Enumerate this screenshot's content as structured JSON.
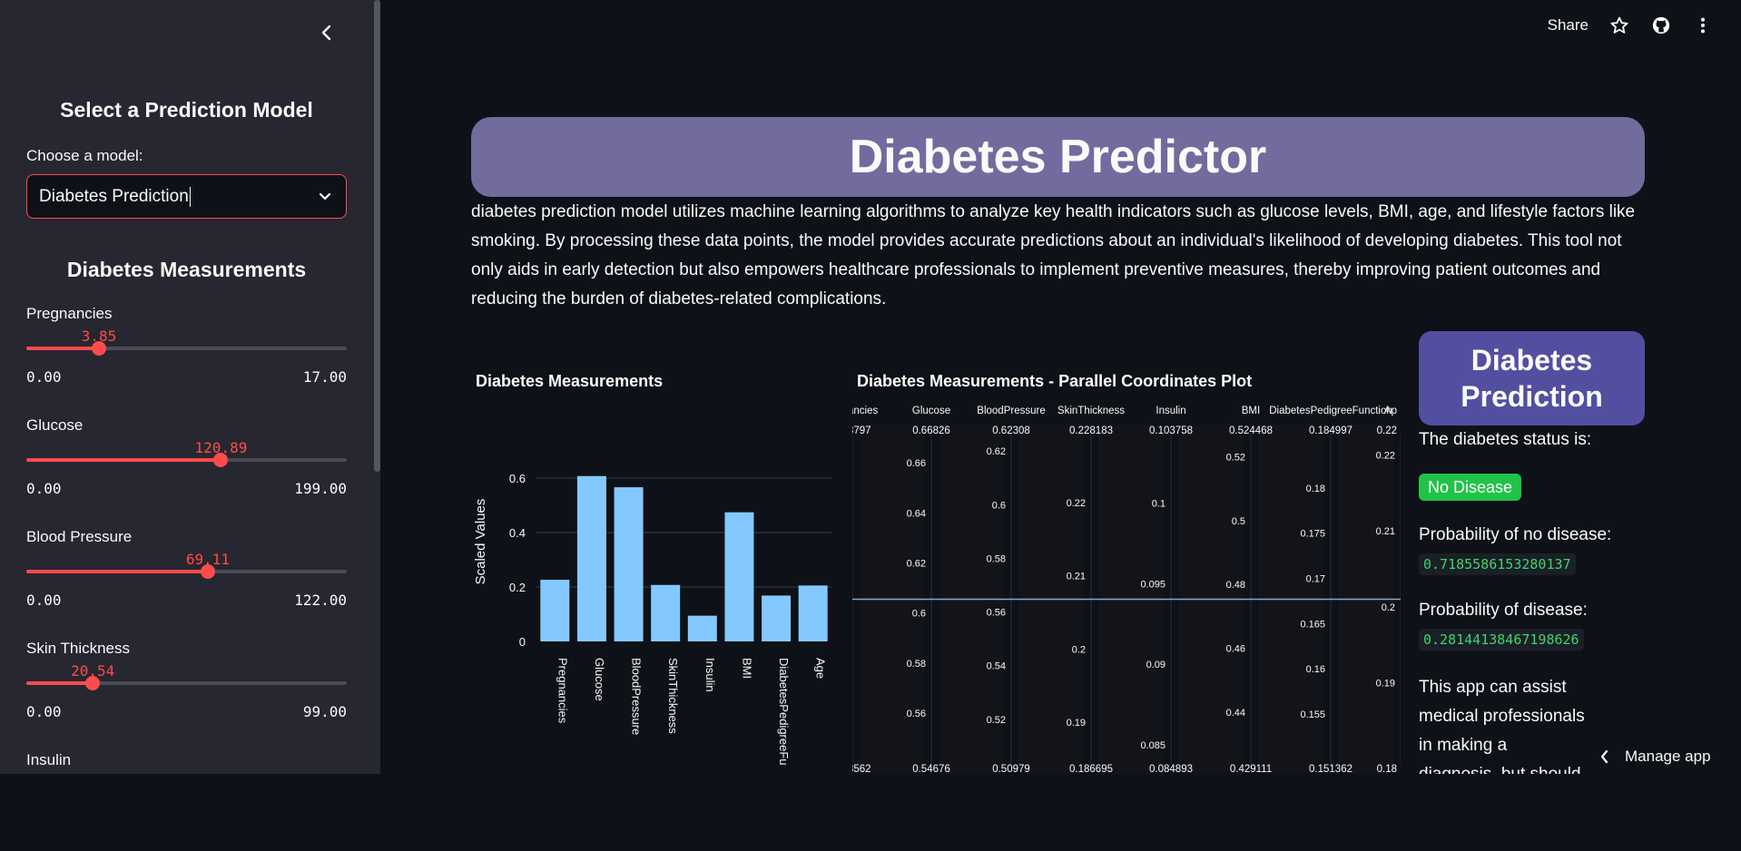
{
  "sidebar": {
    "model_title": "Select a Prediction Model",
    "choose_label": "Choose a model:",
    "selected_model": "Diabetes Prediction",
    "measurements_title": "Diabetes Measurements",
    "sliders": [
      {
        "label": "Pregnancies",
        "value": "3.85",
        "min": "0.00",
        "max": "17.00",
        "fraction": 0.2265
      },
      {
        "label": "Glucose",
        "value": "120.89",
        "min": "0.00",
        "max": "199.00",
        "fraction": 0.6075
      },
      {
        "label": "Blood Pressure",
        "value": "69.11",
        "min": "0.00",
        "max": "122.00",
        "fraction": 0.5665
      },
      {
        "label": "Skin Thickness",
        "value": "20.54",
        "min": "0.00",
        "max": "99.00",
        "fraction": 0.2075
      },
      {
        "label": "Insulin"
      }
    ]
  },
  "topbar": {
    "share": "Share",
    "icons": [
      "star-icon",
      "github-icon",
      "more-vertical-icon"
    ]
  },
  "main": {
    "title": "Diabetes Predictor",
    "description": "diabetes prediction model utilizes machine learning algorithms to analyze key health indicators such as glucose levels, BMI, age, and lifestyle factors like smoking. By processing these data points, the model provides accurate predictions about an individual's likelihood of developing diabetes. This tool not only aids in early detection but also empowers healthcare professionals to implement preventive measures, thereby improving patient outcomes and reducing the burden of diabetes-related complications.",
    "bar_chart_title": "Diabetes Measurements",
    "pc_chart_title": "Diabetes Measurements - Parallel Coordinates Plot"
  },
  "prediction": {
    "card_title_line1": "Diabetes",
    "card_title_line2": "Prediction",
    "status_label": "The diabetes status is:",
    "status": "No Disease",
    "prob_no_label": "Probability of no disease:",
    "prob_no": "0.7185586153280137",
    "prob_yes_label": "Probability of disease:",
    "prob_yes": "0.28144138467198626",
    "note": "This app can assist medical professionals in making a diagnosis, but should not be used as a substitute for a professional diagnosis."
  },
  "manage_app": "Manage app",
  "colors": {
    "accent": "#ff4b4b",
    "bar": "#83c9ff",
    "banner": "#726b9e",
    "card": "#524fa1",
    "badge": "#20c348"
  },
  "chart_data": [
    {
      "type": "bar",
      "title": "Diabetes Measurements",
      "ylabel": "Scaled Values",
      "categories": [
        "Pregnancies",
        "Glucose",
        "BloodPressure",
        "SkinThickness",
        "Insulin",
        "BMI",
        "DiabetesPedigreeFunction",
        "Age"
      ],
      "category_labels": [
        "Pregnancies",
        "Glucose",
        "BloodPressure",
        "SkinThickness",
        "Insulin",
        "BMI",
        "DiabetesPedigreeFu",
        "Age"
      ],
      "values": [
        0.2265,
        0.6075,
        0.5665,
        0.2075,
        0.0945,
        0.4745,
        0.1685,
        0.2055
      ],
      "ylim": [
        0,
        0.66
      ],
      "yticks": [
        "0",
        "0.2",
        "0.4",
        "0.6"
      ],
      "grid": true
    },
    {
      "type": "parallel-coordinates",
      "title": "Diabetes Measurements - Parallel Coordinates Plot",
      "axes": [
        {
          "name": "ancies",
          "max": "8797",
          "min": "3562",
          "ticks": []
        },
        {
          "name": "Glucose",
          "max": "0.66826",
          "min": "0.54676",
          "ticks": [
            [
              "0.66",
              0.066
            ],
            [
              "0.64",
              0.231
            ],
            [
              "0.62",
              0.395
            ],
            [
              "0.6",
              0.56
            ],
            [
              "0.58",
              0.725
            ],
            [
              "0.56",
              0.889
            ]
          ]
        },
        {
          "name": "BloodPressure",
          "max": "0.62308",
          "min": "0.50979",
          "ticks": [
            [
              "0.62",
              0.027
            ],
            [
              "0.6",
              0.204
            ],
            [
              "0.58",
              0.38
            ],
            [
              "0.56",
              0.557
            ],
            [
              "0.54",
              0.733
            ],
            [
              "0.52",
              0.91
            ]
          ]
        },
        {
          "name": "SkinThickness",
          "max": "0.228183",
          "min": "0.186695",
          "ticks": [
            [
              "0.22",
              0.197
            ],
            [
              "0.21",
              0.438
            ],
            [
              "0.2",
              0.679
            ],
            [
              "0.19",
              0.92
            ]
          ]
        },
        {
          "name": "Insulin",
          "max": "0.103758",
          "min": "0.084893",
          "ticks": [
            [
              "0.1",
              0.199
            ],
            [
              "0.095",
              0.464
            ],
            [
              "0.09",
              0.729
            ],
            [
              "0.085",
              0.994
            ]
          ]
        },
        {
          "name": "BMI",
          "max": "0.524468",
          "min": "0.429111",
          "ticks": [
            [
              "0.52",
              0.047
            ],
            [
              "0.5",
              0.256
            ],
            [
              "0.48",
              0.466
            ],
            [
              "0.46",
              0.676
            ],
            [
              "0.44",
              0.886
            ]
          ]
        },
        {
          "name": "DiabetesPedigreeFunction",
          "max": "0.184997",
          "min": "0.151362",
          "ticks": [
            [
              "0.18",
              0.149
            ],
            [
              "0.175",
              0.297
            ],
            [
              "0.17",
              0.446
            ],
            [
              "0.165",
              0.595
            ],
            [
              "0.16",
              0.743
            ],
            [
              "0.155",
              0.892
            ]
          ]
        },
        {
          "name": "Ap",
          "max": "0.22",
          "min": "0.18",
          "ticks": [
            [
              "0.22",
              0.04
            ],
            [
              "0.21",
              0.29
            ],
            [
              "0.2",
              0.54
            ],
            [
              "0.19",
              0.79
            ]
          ]
        }
      ],
      "line_level": 0.5
    }
  ]
}
